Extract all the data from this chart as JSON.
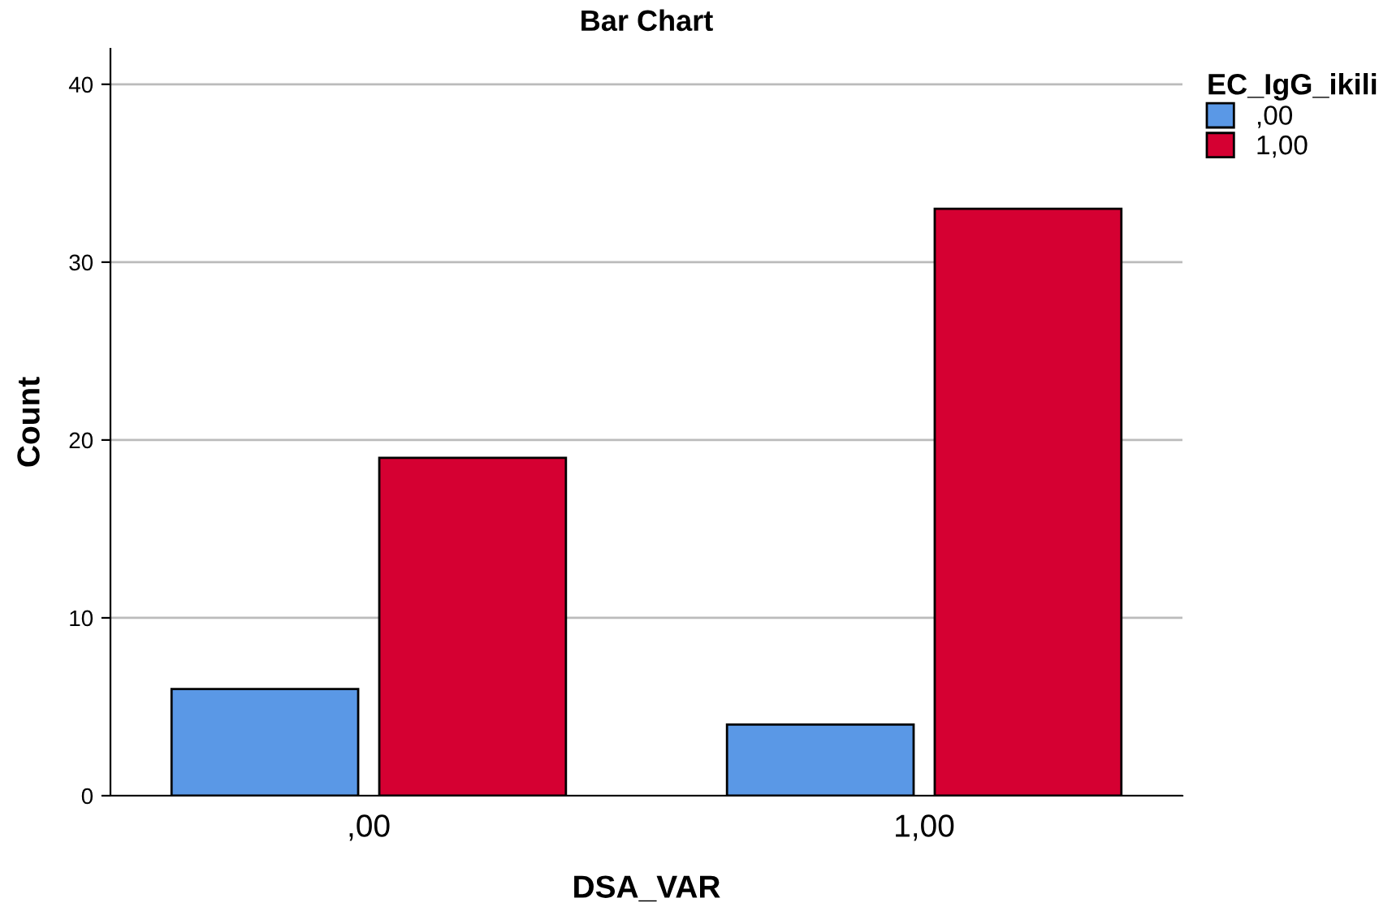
{
  "chart_data": {
    "type": "bar",
    "title": "Bar Chart",
    "xlabel": "DSA_VAR",
    "ylabel": "Count",
    "legend_title": "EC_IgG_ikili",
    "categories": [
      ",00",
      "1,00"
    ],
    "series": [
      {
        "name": ",00",
        "color": "#5a98e6",
        "values": [
          6,
          4
        ]
      },
      {
        "name": "1,00",
        "color": "#d50032",
        "values": [
          19,
          33
        ]
      }
    ],
    "ylim": [
      0,
      42
    ],
    "yticks": [
      0,
      10,
      20,
      30,
      40
    ],
    "grid": "y",
    "legend": "top right"
  }
}
